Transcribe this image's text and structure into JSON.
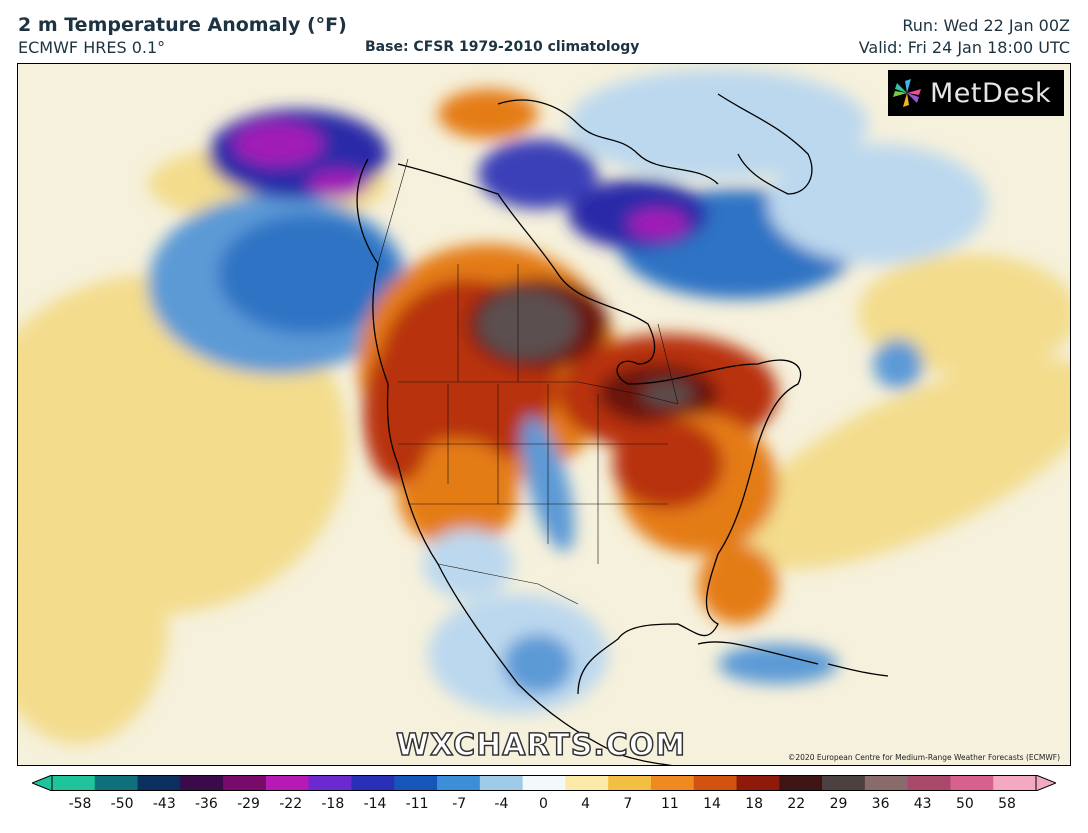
{
  "header": {
    "title": "2 m Temperature Anomaly (°F)",
    "model": "ECMWF HRES 0.1°",
    "base": "Base: CFSR 1979-2010 climatology",
    "run": "Run: Wed 22 Jan 00Z",
    "valid": "Valid: Fri 24 Jan 18:00 UTC"
  },
  "branding": {
    "logo_text": "MetDesk",
    "watermark": "WXCHARTS.COM",
    "credit": "©2020 European Centre for Medium-Range Weather Forecasts (ECMWF)"
  },
  "colorbar": {
    "ticks": [
      "-58",
      "-50",
      "-43",
      "-36",
      "-29",
      "-22",
      "-18",
      "-14",
      "-11",
      "-7",
      "-4",
      "0",
      "4",
      "7",
      "11",
      "14",
      "18",
      "22",
      "29",
      "36",
      "43",
      "50",
      "58"
    ],
    "colors": [
      "#1fc49b",
      "#0f6f7a",
      "#0b2f5e",
      "#3a0a4a",
      "#7a0a6a",
      "#b51ab5",
      "#6a2ad0",
      "#2a2fb8",
      "#1656b8",
      "#3b8fd6",
      "#9dcbe8",
      "#f4f8fb",
      "#fbe9a8",
      "#f2bf43",
      "#ee8a1f",
      "#d3520f",
      "#8e1a0a",
      "#3e1414",
      "#4d4040",
      "#8a6a6a",
      "#a8486a",
      "#d8608c",
      "#f3a8c4"
    ]
  },
  "map": {
    "colors": {
      "ocean_warm": "#f3dc8c",
      "neutral": "#f6f1dc",
      "cold_light": "#bcd8ee",
      "cold": "#2f73c4",
      "cold_deep": "#2b2aa8",
      "extreme_cold": "#a21ab8",
      "warm": "#e47b18",
      "hot": "#b8320c",
      "very_hot": "#6b1410",
      "extreme_hot": "#5c5050"
    }
  }
}
